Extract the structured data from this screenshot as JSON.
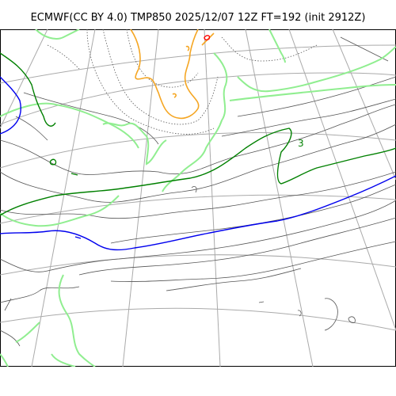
{
  "title": "ECMWF(CC BY 4.0) TMP850 2025/12/07 12Z FT=192 (init 2912Z)",
  "map": {
    "label_small": "3",
    "colors": {
      "graticule": "#aaaaaa",
      "coast": "#000000",
      "isotherm_thin": "#555555",
      "isotherm_dotted": "#555555",
      "isotherm_zero_c": "#0000ee",
      "isotherm_light_green": "#90ee90",
      "isotherm_dark_green": "#008000",
      "isotherm_orange": "#f5a623",
      "isotherm_red": "#ff0000"
    }
  }
}
